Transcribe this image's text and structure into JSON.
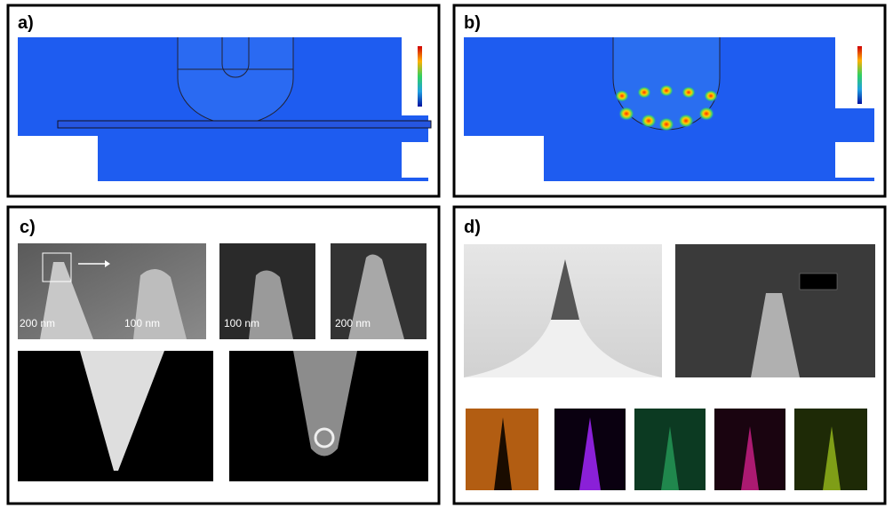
{
  "panels": [
    {
      "label": "a)"
    },
    {
      "label": "b)"
    },
    {
      "label": "c)",
      "scale_bars": [
        "200 nm",
        "100 nm",
        "100 nm",
        "200 nm"
      ]
    },
    {
      "label": "d)"
    }
  ]
}
